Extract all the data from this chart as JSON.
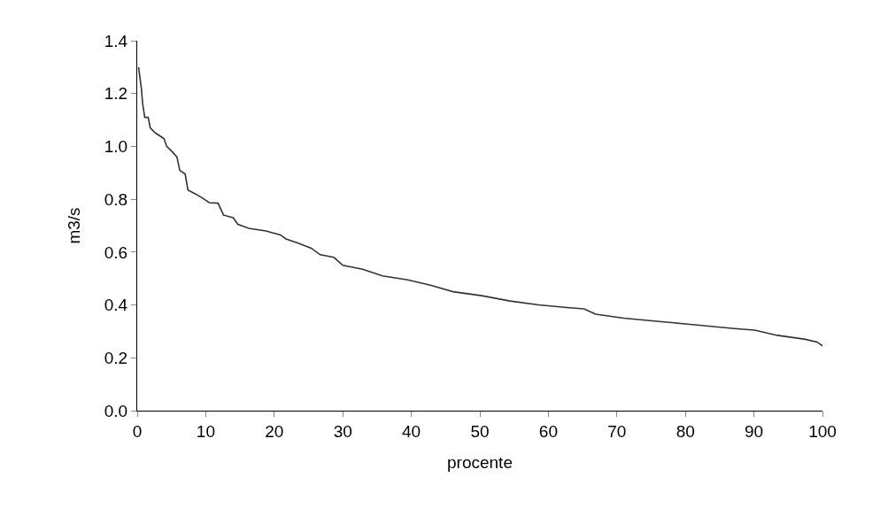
{
  "chart_data": {
    "type": "line",
    "xlabel": "procente",
    "ylabel": "m3/s",
    "series": [
      {
        "color": "#333333",
        "x": [
          0.2,
          0.6,
          0.8,
          1.1,
          1.6,
          1.9,
          2.7,
          3.9,
          4.3,
          5.1,
          5.8,
          6.2,
          7.0,
          7.4,
          8.5,
          9.5,
          10.5,
          11.8,
          12.6,
          14.0,
          14.7,
          16.3,
          18.8,
          20.9,
          21.7,
          23.4,
          25.4,
          26.7,
          28.7,
          30.0,
          32.9,
          35.8,
          39.5,
          42.8,
          46.1,
          50.3,
          54.4,
          58.6,
          62.7,
          65.2,
          66.9,
          71.0,
          75.1,
          79.3,
          83.4,
          87.5,
          90.1,
          93.4,
          97.5,
          99.2,
          100
        ],
        "values": [
          1.3,
          1.22,
          1.16,
          1.11,
          1.11,
          1.07,
          1.05,
          1.03,
          1.0,
          0.98,
          0.96,
          0.91,
          0.895,
          0.835,
          0.82,
          0.805,
          0.787,
          0.785,
          0.74,
          0.73,
          0.705,
          0.69,
          0.68,
          0.665,
          0.65,
          0.635,
          0.615,
          0.59,
          0.58,
          0.55,
          0.535,
          0.51,
          0.495,
          0.475,
          0.45,
          0.435,
          0.415,
          0.4,
          0.39,
          0.385,
          0.365,
          0.35,
          0.34,
          0.33,
          0.32,
          0.31,
          0.305,
          0.285,
          0.27,
          0.26,
          0.245
        ]
      }
    ],
    "xlim": [
      0,
      100
    ],
    "xticks": [
      0,
      10,
      20,
      30,
      40,
      50,
      60,
      70,
      80,
      90,
      100
    ],
    "ylim": [
      0,
      1.4
    ],
    "yticks": [
      {
        "value": 0,
        "label": "0.0"
      },
      {
        "value": 0.2,
        "label": "0.2"
      },
      {
        "value": 0.4,
        "label": "0.4"
      },
      {
        "value": 0.6,
        "label": "0.6"
      },
      {
        "value": 0.8,
        "label": "0.8"
      },
      {
        "value": 1.0,
        "label": "1.0"
      },
      {
        "value": 1.2,
        "label": "1.2"
      },
      {
        "value": 1.4,
        "label": "1.4"
      }
    ],
    "marker": "none",
    "line_style": "solid"
  }
}
